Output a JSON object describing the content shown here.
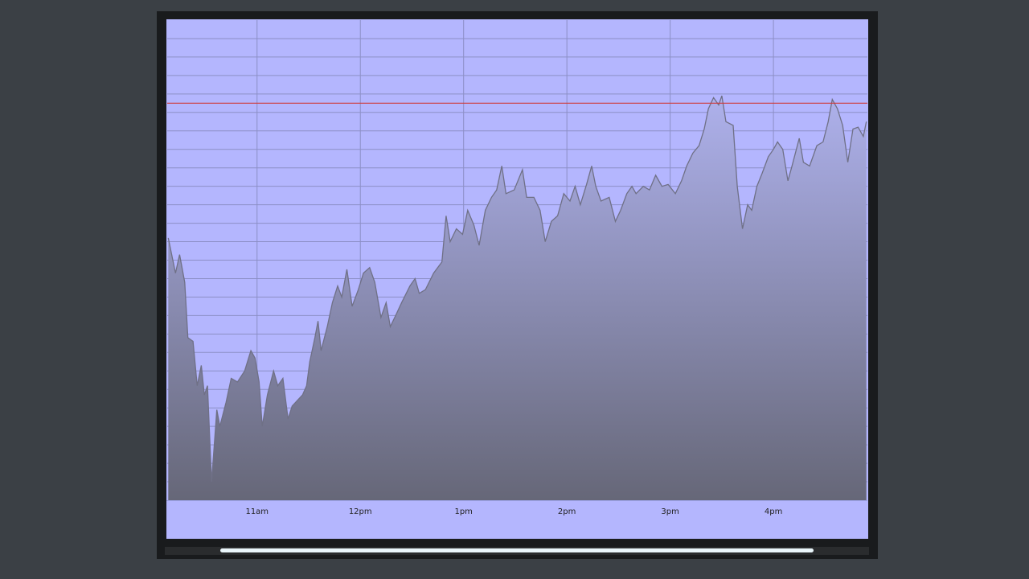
{
  "chart_data": {
    "type": "area",
    "x": [
      10.14,
      10.21,
      10.25,
      10.3,
      10.33,
      10.38,
      10.42,
      10.46,
      10.49,
      10.52,
      10.56,
      10.61,
      10.64,
      10.7,
      10.75,
      10.81,
      10.88,
      10.94,
      10.98,
      11.02,
      11.05,
      11.1,
      11.16,
      11.2,
      11.25,
      11.3,
      11.34,
      11.44,
      11.48,
      11.51,
      11.56,
      11.59,
      11.62,
      11.68,
      11.73,
      11.78,
      11.82,
      11.87,
      11.92,
      11.98,
      12.03,
      12.09,
      12.14,
      12.2,
      12.25,
      12.29,
      12.35,
      12.4,
      12.48,
      12.53,
      12.57,
      12.63,
      12.71,
      12.79,
      12.83,
      12.87,
      12.93,
      12.99,
      13.04,
      13.1,
      13.15,
      13.21,
      13.27,
      13.32,
      13.37,
      13.41,
      13.49,
      13.57,
      13.61,
      13.68,
      13.74,
      13.79,
      13.85,
      13.91,
      13.97,
      14.03,
      14.08,
      14.13,
      14.19,
      14.24,
      14.28,
      14.33,
      14.41,
      14.47,
      14.52,
      14.58,
      14.63,
      14.67,
      14.74,
      14.8,
      14.86,
      14.92,
      14.98,
      15.05,
      15.11,
      15.16,
      15.22,
      15.28,
      15.33,
      15.37,
      15.42,
      15.47,
      15.5,
      15.54,
      15.61,
      15.65,
      15.7,
      15.75,
      15.79,
      15.84,
      15.89,
      15.95,
      16.0,
      16.04,
      16.09,
      16.14,
      16.18,
      16.25,
      16.29,
      16.35,
      16.42,
      16.48,
      16.53,
      16.57,
      16.62,
      16.67,
      16.72,
      16.77,
      16.82,
      16.87,
      16.9
    ],
    "values": [
      14.2,
      12.3,
      13.3,
      11.8,
      8.8,
      8.6,
      6.2,
      7.3,
      5.7,
      6.2,
      1.0,
      4.9,
      4.0,
      5.3,
      6.6,
      6.4,
      7.0,
      8.1,
      7.7,
      6.4,
      4.0,
      5.7,
      7.0,
      6.2,
      6.6,
      4.4,
      5.1,
      5.7,
      6.2,
      7.5,
      8.8,
      9.7,
      8.1,
      9.4,
      10.7,
      11.6,
      11.0,
      12.5,
      10.5,
      11.4,
      12.3,
      12.6,
      11.8,
      9.9,
      10.7,
      9.4,
      10.1,
      10.7,
      11.6,
      12.0,
      11.2,
      11.4,
      12.3,
      12.9,
      15.4,
      14.0,
      14.7,
      14.4,
      15.7,
      14.9,
      13.8,
      15.7,
      16.4,
      16.8,
      18.1,
      16.6,
      16.8,
      17.9,
      16.4,
      16.4,
      15.7,
      14.0,
      15.1,
      15.4,
      16.6,
      16.2,
      17.0,
      16.0,
      17.1,
      18.1,
      17.0,
      16.2,
      16.4,
      15.1,
      15.7,
      16.6,
      17.0,
      16.6,
      17.0,
      16.8,
      17.6,
      17.0,
      17.1,
      16.6,
      17.3,
      18.1,
      18.8,
      19.2,
      20.1,
      21.2,
      21.8,
      21.4,
      21.9,
      20.5,
      20.3,
      17.0,
      14.7,
      16.0,
      15.7,
      17.0,
      17.7,
      18.6,
      19.0,
      19.4,
      19.0,
      17.3,
      18.1,
      19.6,
      18.3,
      18.1,
      19.2,
      19.4,
      20.5,
      21.7,
      21.2,
      20.3,
      18.3,
      20.1,
      20.2,
      19.7,
      20.5
    ],
    "xlim": [
      10.13,
      16.91
    ],
    "xticks": [
      {
        "value": 11,
        "label": "11am"
      },
      {
        "value": 12,
        "label": "12pm"
      },
      {
        "value": 13,
        "label": "1pm"
      },
      {
        "value": 14,
        "label": "2pm"
      },
      {
        "value": 15,
        "label": "3pm"
      },
      {
        "value": 16,
        "label": "4pm"
      }
    ],
    "ylim": [
      0,
      26
    ],
    "ygrid": [
      1,
      2,
      3,
      4,
      5,
      6,
      7,
      8,
      9,
      10,
      11,
      12,
      13,
      14,
      15,
      16,
      17,
      18,
      19,
      20,
      21,
      22,
      23,
      24,
      25
    ],
    "reference_line": 21.5,
    "reference_color": "#d03a3a",
    "color": "#6f7086",
    "grid": true
  }
}
